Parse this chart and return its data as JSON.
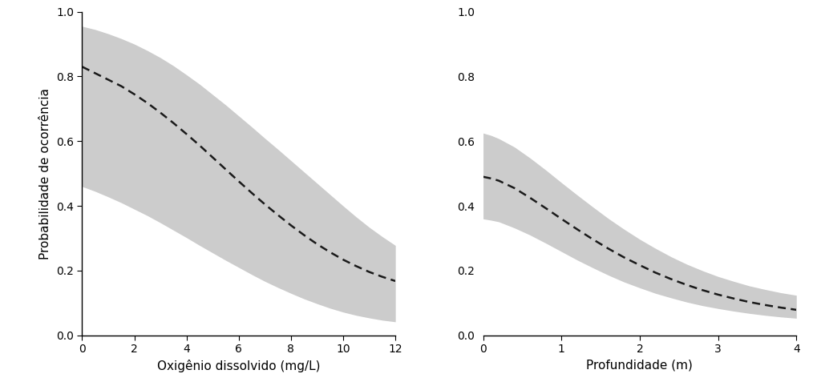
{
  "plot1": {
    "xlabel": "Oxigênio dissolvido (mg/L)",
    "xlim": [
      0,
      12
    ],
    "xticks": [
      0,
      2,
      4,
      6,
      8,
      10,
      12
    ],
    "ylim": [
      0.0,
      1.0
    ],
    "yticks": [
      0.0,
      0.2,
      0.4,
      0.6,
      0.8,
      1.0
    ],
    "mean_x": [
      0,
      0.5,
      1,
      1.5,
      2,
      2.5,
      3,
      3.5,
      4,
      4.5,
      5,
      5.5,
      6,
      6.5,
      7,
      7.5,
      8,
      8.5,
      9,
      9.5,
      10,
      10.5,
      11,
      11.5,
      12
    ],
    "mean_y": [
      0.83,
      0.81,
      0.79,
      0.77,
      0.745,
      0.718,
      0.688,
      0.656,
      0.622,
      0.587,
      0.55,
      0.513,
      0.476,
      0.44,
      0.405,
      0.372,
      0.34,
      0.31,
      0.282,
      0.257,
      0.234,
      0.214,
      0.196,
      0.181,
      0.168
    ],
    "upper_y": [
      0.955,
      0.945,
      0.932,
      0.917,
      0.9,
      0.88,
      0.858,
      0.833,
      0.805,
      0.776,
      0.744,
      0.712,
      0.678,
      0.644,
      0.609,
      0.575,
      0.54,
      0.505,
      0.47,
      0.435,
      0.4,
      0.366,
      0.334,
      0.305,
      0.278
    ],
    "lower_y": [
      0.46,
      0.445,
      0.428,
      0.41,
      0.39,
      0.37,
      0.348,
      0.325,
      0.302,
      0.278,
      0.255,
      0.232,
      0.21,
      0.188,
      0.167,
      0.148,
      0.13,
      0.113,
      0.098,
      0.084,
      0.072,
      0.062,
      0.054,
      0.047,
      0.042
    ]
  },
  "plot2": {
    "xlabel": "Profundidade (m)",
    "xlim": [
      0,
      4
    ],
    "xticks": [
      0,
      1,
      2,
      3,
      4
    ],
    "ylim": [
      0.0,
      1.0
    ],
    "yticks": [
      0.0,
      0.2,
      0.4,
      0.6,
      0.8,
      1.0
    ],
    "mean_x": [
      0,
      0.1,
      0.2,
      0.4,
      0.6,
      0.8,
      1.0,
      1.2,
      1.4,
      1.6,
      1.8,
      2.0,
      2.2,
      2.4,
      2.6,
      2.8,
      3.0,
      3.2,
      3.4,
      3.6,
      3.8,
      4.0
    ],
    "mean_y": [
      0.49,
      0.485,
      0.478,
      0.455,
      0.425,
      0.393,
      0.36,
      0.328,
      0.297,
      0.268,
      0.241,
      0.217,
      0.194,
      0.174,
      0.156,
      0.14,
      0.126,
      0.114,
      0.103,
      0.094,
      0.086,
      0.079
    ],
    "upper_y": [
      0.625,
      0.618,
      0.608,
      0.582,
      0.548,
      0.511,
      0.472,
      0.434,
      0.397,
      0.361,
      0.328,
      0.297,
      0.269,
      0.243,
      0.22,
      0.2,
      0.182,
      0.167,
      0.153,
      0.142,
      0.132,
      0.124
    ],
    "lower_y": [
      0.36,
      0.356,
      0.351,
      0.332,
      0.31,
      0.285,
      0.259,
      0.233,
      0.209,
      0.186,
      0.165,
      0.147,
      0.13,
      0.116,
      0.103,
      0.092,
      0.083,
      0.075,
      0.068,
      0.062,
      0.057,
      0.053
    ]
  },
  "ylabel": "Probabilidade de ocorrência",
  "line_color": "#1a1a1a",
  "fill_color": "#cccccc",
  "fill_alpha": 1.0,
  "line_width": 1.8,
  "font_size": 10,
  "label_font_size": 11,
  "background_color": "#ffffff"
}
